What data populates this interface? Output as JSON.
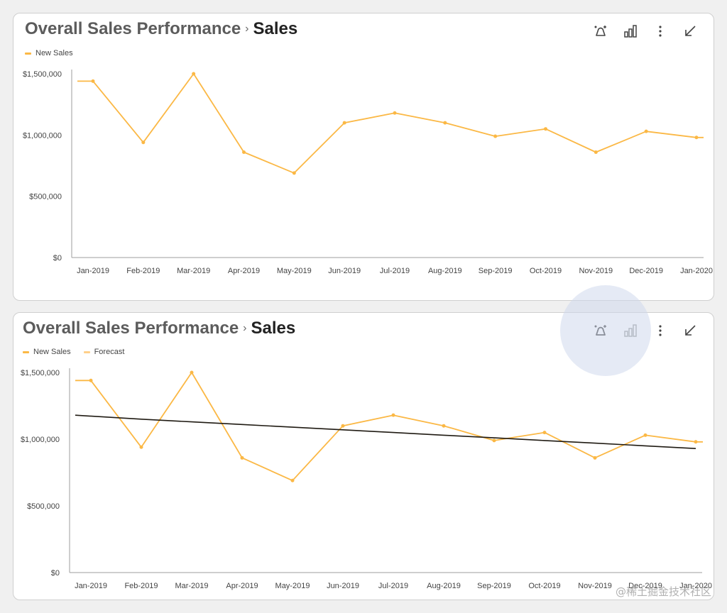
{
  "colors": {
    "new_sales": "#FBB845",
    "forecast_legend": "#FFD08A",
    "trend_line": "#1f1a12",
    "axis": "#9e9e9e",
    "icon": "#444444",
    "icon_disabled": "#9a9a9a"
  },
  "watermark": "@稀土掘金技术社区",
  "cards": [
    {
      "title": {
        "breadcrumb": "Overall Sales Performance",
        "separator": "›",
        "page": "Sales"
      },
      "toolbar": {
        "icons": [
          "magic-analytics-icon",
          "bar-chart-icon",
          "more-vert-icon",
          "collapse-icon"
        ]
      },
      "legend": [
        {
          "label": "New Sales",
          "color": "#FBB845"
        }
      ]
    },
    {
      "title": {
        "breadcrumb": "Overall Sales Performance",
        "separator": "›",
        "page": "Sales"
      },
      "toolbar": {
        "icons": [
          "magic-analytics-icon",
          "bar-chart-icon",
          "more-vert-icon",
          "collapse-icon"
        ]
      },
      "legend": [
        {
          "label": "New Sales",
          "color": "#FBB845"
        },
        {
          "label": "Forecast",
          "color": "#FFD08A"
        }
      ]
    }
  ],
  "chart_data": [
    {
      "type": "line",
      "title": "",
      "xlabel": "",
      "ylabel": "",
      "categories": [
        "Jan-2019",
        "Feb-2019",
        "Mar-2019",
        "Apr-2019",
        "May-2019",
        "Jun-2019",
        "Jul-2019",
        "Aug-2019",
        "Sep-2019",
        "Oct-2019",
        "Nov-2019",
        "Dec-2019",
        "Jan-2020"
      ],
      "series": [
        {
          "name": "New Sales",
          "values": [
            1440000,
            940000,
            1500000,
            860000,
            690000,
            1100000,
            1180000,
            1100000,
            990000,
            1050000,
            860000,
            1030000,
            980000
          ]
        }
      ],
      "yticks": [
        "$0",
        "$500,000",
        "$1,000,000",
        "$1,500,000"
      ],
      "ylim": [
        0,
        1500000
      ],
      "grid": false,
      "legend_position": "top-left"
    },
    {
      "type": "line",
      "title": "",
      "xlabel": "",
      "ylabel": "",
      "categories": [
        "Jan-2019",
        "Feb-2019",
        "Mar-2019",
        "Apr-2019",
        "May-2019",
        "Jun-2019",
        "Jul-2019",
        "Aug-2019",
        "Sep-2019",
        "Oct-2019",
        "Nov-2019",
        "Dec-2019",
        "Jan-2020"
      ],
      "series": [
        {
          "name": "New Sales",
          "values": [
            1440000,
            940000,
            1500000,
            860000,
            690000,
            1100000,
            1180000,
            1100000,
            990000,
            1050000,
            860000,
            1030000,
            980000
          ]
        },
        {
          "name": "Forecast",
          "values": [
            1180000,
            1150000,
            1130000,
            1110000,
            1090000,
            1070000,
            1050000,
            1030000,
            1010000,
            990000,
            970000,
            950000,
            930000
          ]
        }
      ],
      "yticks": [
        "$0",
        "$500,000",
        "$1,000,000",
        "$1,500,000"
      ],
      "ylim": [
        0,
        1500000
      ],
      "grid": false,
      "legend_position": "top-left"
    }
  ]
}
